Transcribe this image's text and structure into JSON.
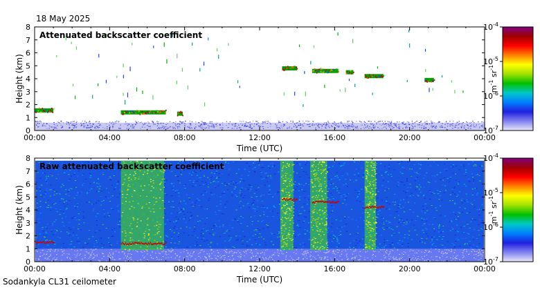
{
  "date": "18 May 2025",
  "footer": "Sodankyla CL31 ceilometer",
  "colorscale": {
    "unit_main": "m",
    "unit_sup1": "-1",
    "unit_sr": " sr",
    "unit_sup2": "-1",
    "ticks": [
      {
        "base": "10",
        "exp": "-4",
        "value": 0.0001
      },
      {
        "base": "10",
        "exp": "-5",
        "value": 1e-05
      },
      {
        "base": "10",
        "exp": "-6",
        "value": 1e-06
      },
      {
        "base": "10",
        "exp": "-7",
        "value": 1e-07
      }
    ],
    "colors": [
      "#e8e8f8",
      "#8080f0",
      "#2020e0",
      "#0080ff",
      "#00c8c8",
      "#00c000",
      "#a0e000",
      "#ffff00",
      "#ff8000",
      "#ff0000",
      "#a00000",
      "#800080"
    ]
  },
  "chart_data": [
    {
      "type": "heatmap",
      "title": "Attenuated backscatter coefficient",
      "xlabel": "Time (UTC)",
      "ylabel": "Height (km)",
      "xticks": [
        "00:00",
        "04:00",
        "08:00",
        "12:00",
        "16:00",
        "20:00",
        "00:00"
      ],
      "yticks": [
        "0",
        "1",
        "2",
        "3",
        "4",
        "5",
        "6",
        "7",
        "8"
      ],
      "xlim": [
        0,
        24
      ],
      "ylim": [
        0,
        8
      ],
      "color_scale": "log",
      "color_range": [
        1e-07,
        0.0001
      ],
      "features": [
        {
          "name": "surface noise",
          "x_start": 0,
          "x_end": 24,
          "height": 0.6
        },
        {
          "name": "cloud layer",
          "x_start": 0.0,
          "x_end": 1.0,
          "height": 1.55
        },
        {
          "name": "cloud layer",
          "x_start": 4.6,
          "x_end": 7.0,
          "height": 1.4
        },
        {
          "name": "cloud patch",
          "x_start": 7.6,
          "x_end": 7.9,
          "height": 1.3
        },
        {
          "name": "cloud layer",
          "x_start": 13.2,
          "x_end": 14.0,
          "height": 4.8
        },
        {
          "name": "cloud layer",
          "x_start": 14.8,
          "x_end": 16.2,
          "height": 4.6
        },
        {
          "name": "cloud layer",
          "x_start": 16.6,
          "x_end": 17.0,
          "height": 4.5
        },
        {
          "name": "cloud layer",
          "x_start": 17.6,
          "x_end": 18.6,
          "height": 4.2
        },
        {
          "name": "cloud layer",
          "x_start": 20.8,
          "x_end": 21.3,
          "height": 3.9
        }
      ]
    },
    {
      "type": "heatmap",
      "title": "Raw attenuated backscatter coefficient",
      "xlabel": "Time (UTC)",
      "ylabel": "Height (km)",
      "xticks": [
        "00:00",
        "04:00",
        "08:00",
        "12:00",
        "16:00",
        "20:00",
        "00:00"
      ],
      "yticks": [
        "0",
        "1",
        "2",
        "3",
        "4",
        "5",
        "6",
        "7",
        "8"
      ],
      "xlim": [
        0,
        24
      ],
      "ylim": [
        0,
        8
      ],
      "color_scale": "log",
      "color_range": [
        1e-07,
        0.0001
      ],
      "features": [
        {
          "name": "background noise",
          "x_start": 0,
          "x_end": 24,
          "height_range": [
            0,
            7.8
          ]
        },
        {
          "name": "elevated noise band",
          "x_start": 4.6,
          "x_end": 6.9
        },
        {
          "name": "elevated noise band",
          "x_start": 13.1,
          "x_end": 13.8
        },
        {
          "name": "elevated noise band",
          "x_start": 14.7,
          "x_end": 15.6
        },
        {
          "name": "elevated noise band",
          "x_start": 17.6,
          "x_end": 18.2
        },
        {
          "name": "cloud layer",
          "x_start": 0.0,
          "x_end": 1.0,
          "height": 1.5
        },
        {
          "name": "cloud layer",
          "x_start": 4.6,
          "x_end": 7.0,
          "height": 1.4
        },
        {
          "name": "cloud layer",
          "x_start": 13.2,
          "x_end": 14.0,
          "height": 4.8
        },
        {
          "name": "cloud layer",
          "x_start": 14.8,
          "x_end": 16.2,
          "height": 4.6
        },
        {
          "name": "cloud layer",
          "x_start": 17.6,
          "x_end": 18.6,
          "height": 4.2
        }
      ]
    }
  ]
}
